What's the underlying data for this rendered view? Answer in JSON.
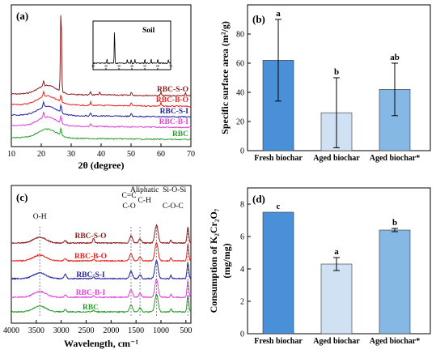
{
  "colors": {
    "RBC-S-O": "#8b1a1a",
    "RBC-B-O": "#e8211c",
    "RBC-S-I": "#1f1fa0",
    "RBC-B-I": "#e040d8",
    "RBC": "#2a9a2a",
    "bar_fresh": "#4a90d9",
    "bar_aged": "#cfe1f3",
    "bar_aged_star": "#86b8e6"
  },
  "chart_data": [
    {
      "panel": "(a)",
      "type": "line",
      "xlabel": "2θ (degree)",
      "xlim": [
        10,
        70
      ],
      "xticks": [
        10,
        20,
        30,
        40,
        50,
        60,
        70
      ],
      "y_ticks_shown": false,
      "series": [
        {
          "name": "RBC-S-O",
          "color": "#8b1a1a",
          "peaks_2theta": [
            20.8,
            26.6,
            36.5,
            39.5,
            50.1,
            60.0,
            68.2
          ]
        },
        {
          "name": "RBC-B-O",
          "color": "#e8211c",
          "peaks_2theta": [
            20.8,
            26.6,
            36.5,
            50.1,
            60.0
          ]
        },
        {
          "name": "RBC-S-I",
          "color": "#1f1fa0",
          "peaks_2theta": [
            20.8,
            26.6,
            36.5,
            50.1
          ]
        },
        {
          "name": "RBC-B-I",
          "color": "#e040d8",
          "peaks_2theta": [
            20.8,
            26.6,
            36.5
          ]
        },
        {
          "name": "RBC",
          "color": "#2a9a2a",
          "peaks_2theta": [
            26.6
          ]
        }
      ],
      "inset": {
        "label": "Soil",
        "xlim": [
          10,
          70
        ],
        "xticks": [
          10,
          20,
          30,
          40,
          50,
          60,
          70
        ],
        "peaks_2theta": [
          20.8,
          26.6,
          36.5,
          39.5,
          42.4,
          50.1,
          54.9,
          60.0,
          68.2
        ]
      }
    },
    {
      "panel": "(b)",
      "type": "bar",
      "ylabel": "Specific surface area (m²/g)",
      "ylim": [
        0,
        100
      ],
      "yticks": [
        0,
        20,
        40,
        60,
        80
      ],
      "categories": [
        "Fresh biochar",
        "Aged biochar",
        "Aged biochar*"
      ],
      "values": [
        62,
        26,
        42
      ],
      "errors": [
        28,
        24,
        18
      ],
      "letters": [
        "a",
        "b",
        "ab"
      ]
    },
    {
      "panel": "(c)",
      "type": "line",
      "xlabel": "Wavelength, cm⁻¹",
      "xlim": [
        4000,
        400
      ],
      "xticks": [
        4000,
        3500,
        3000,
        2500,
        2000,
        1500,
        1000,
        500
      ],
      "y_ticks_shown": false,
      "series": [
        {
          "name": "RBC-S-O",
          "color": "#8b1a1a"
        },
        {
          "name": "RBC-B-O",
          "color": "#e8211c"
        },
        {
          "name": "RBC-S-I",
          "color": "#1f1fa0"
        },
        {
          "name": "RBC-B-I",
          "color": "#e040d8"
        },
        {
          "name": "RBC",
          "color": "#2a9a2a"
        }
      ],
      "annotations": [
        {
          "text": "O-H",
          "x": 3430
        },
        {
          "text": "C=C",
          "x": 1600
        },
        {
          "text": "C-O",
          "x": 1600
        },
        {
          "text": "Aliphatic",
          "x": 1420
        },
        {
          "text": "C-H",
          "x": 1420
        },
        {
          "text": "Si-O-Si",
          "x": 1090
        },
        {
          "text": "C-O-C",
          "x": 1050
        }
      ]
    },
    {
      "panel": "(d)",
      "type": "bar",
      "ylabel_line1": "Consumption of  K₂Cr₂O₇",
      "ylabel_line2": "(mg/mg)",
      "ylim": [
        0,
        9
      ],
      "yticks": [
        0,
        2,
        4,
        6,
        8
      ],
      "categories": [
        "Fresh biochar",
        "Aged biochar",
        "Aged biochar*"
      ],
      "values": [
        7.5,
        4.3,
        6.4
      ],
      "errors": [
        0.0,
        0.4,
        0.1
      ],
      "letters": [
        "c",
        "a",
        "b"
      ]
    }
  ],
  "text": {
    "a_label": "(a)",
    "a_xlabel": "2θ (degree)",
    "a_inset": "Soil",
    "b_label": "(b)",
    "b_ylabel": "Specific surface area (m²/g)",
    "c_label": "(c)",
    "c_xlabel": "Wavelength, cm⁻¹",
    "d_label": "(d)",
    "d_ylabel1": "Consumption of  K₂Cr₂O₇",
    "d_ylabel2": "(mg/mg)"
  }
}
